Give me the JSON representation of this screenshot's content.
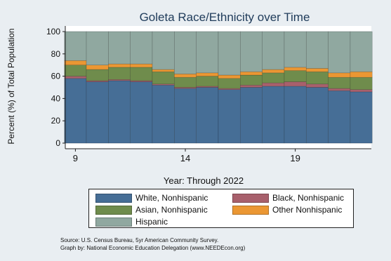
{
  "chart_data": {
    "type": "bar",
    "stacked": true,
    "title": "Goleta Race/Ethnicity over Time",
    "xlabel": "Year: Through 2022",
    "ylabel": "Percent (%) of Total Population",
    "ylim": [
      0,
      100
    ],
    "yticks": [
      0,
      20,
      40,
      60,
      80,
      100
    ],
    "xticks": [
      9,
      14,
      19
    ],
    "categories": [
      9,
      10,
      11,
      12,
      13,
      14,
      15,
      16,
      17,
      18,
      19,
      20,
      21,
      22
    ],
    "grid": true,
    "legend_position": "bottom",
    "series": [
      {
        "name": "White, Nonhispanic",
        "color": "#466e96",
        "values": [
          58,
          55,
          56,
          55,
          52,
          49,
          50,
          48,
          50,
          51,
          51,
          50,
          47,
          46
        ]
      },
      {
        "name": "Black, Nonhispanic",
        "color": "#a8606c",
        "values": [
          2,
          1,
          1,
          1,
          1,
          1,
          1,
          1,
          2,
          3,
          4,
          3,
          2,
          2
        ]
      },
      {
        "name": "Asian, Nonhispanic",
        "color": "#6f8c4c",
        "values": [
          10,
          10,
          11,
          12,
          11,
          9,
          9,
          9,
          9,
          9,
          10,
          11,
          10,
          11
        ]
      },
      {
        "name": "Other Nonhispanic",
        "color": "#eb9733",
        "values": [
          4,
          4,
          3,
          3,
          2,
          3,
          3,
          3,
          3,
          3,
          3,
          3,
          4,
          5
        ]
      },
      {
        "name": "Hispanic",
        "color": "#90a8a0",
        "values": [
          26,
          30,
          29,
          29,
          34,
          38,
          37,
          39,
          36,
          34,
          32,
          33,
          37,
          36
        ]
      }
    ]
  },
  "footer": {
    "source": "Source:  U.S. Census Bureau, 5yr American Community Survey.",
    "credit": "Graph by: National Economic Education Delegation (www.NEEDEcon.org)"
  }
}
